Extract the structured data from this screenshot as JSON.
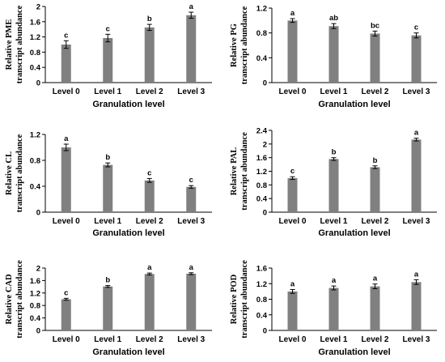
{
  "colors": {
    "bar": "#808080",
    "axis": "#000000",
    "text": "#000000"
  },
  "chart_data": [
    {
      "type": "bar",
      "categories": [
        "Level 0",
        "Level 1",
        "Level 2",
        "Level 3"
      ],
      "values": [
        1.0,
        1.17,
        1.45,
        1.77
      ],
      "errors": [
        0.1,
        0.1,
        0.08,
        0.08
      ],
      "significance": [
        "c",
        "c",
        "b",
        "a"
      ],
      "ylim": [
        0,
        2
      ],
      "yticks": [
        "0",
        "0.4",
        "0.8",
        "1.2",
        "1.6",
        "2"
      ],
      "ylabel": [
        "Relative PME",
        "transcript abundance"
      ],
      "xlabel": "Granulation level"
    },
    {
      "type": "bar",
      "categories": [
        "Level 0",
        "Level 1",
        "Level 2",
        "Level 3"
      ],
      "values": [
        1.0,
        0.91,
        0.79,
        0.76
      ],
      "errors": [
        0.03,
        0.04,
        0.04,
        0.04
      ],
      "significance": [
        "a",
        "ab",
        "bc",
        "c"
      ],
      "ylim": [
        0,
        1.2
      ],
      "yticks": [
        "0",
        "0.4",
        "0.8",
        "1.2"
      ],
      "ylabel": [
        "Relative PG",
        "transcript abundance"
      ],
      "xlabel": "Granulation level"
    },
    {
      "type": "bar",
      "categories": [
        "Level 0",
        "Level 1",
        "Level 2",
        "Level 3"
      ],
      "values": [
        1.0,
        0.73,
        0.49,
        0.39
      ],
      "errors": [
        0.05,
        0.03,
        0.03,
        0.02
      ],
      "significance": [
        "a",
        "b",
        "c",
        "c"
      ],
      "ylim": [
        0,
        1.2
      ],
      "yticks": [
        "0",
        "0.4",
        "0.8",
        "1.2"
      ],
      "ylabel": [
        "Relative CL",
        "transcript abundance"
      ],
      "xlabel": "Granulation level"
    },
    {
      "type": "bar",
      "categories": [
        "Level 0",
        "Level 1",
        "Level 2",
        "Level 3"
      ],
      "values": [
        1.0,
        1.56,
        1.32,
        2.13
      ],
      "errors": [
        0.04,
        0.04,
        0.04,
        0.04
      ],
      "significance": [
        "c",
        "b",
        "b",
        "a"
      ],
      "ylim": [
        0,
        2.4
      ],
      "yticks": [
        "0",
        "0.4",
        "0.8",
        "1.2",
        "1.6",
        "2",
        "2.4"
      ],
      "ylabel": [
        "Relative PAL",
        "transcript abundance"
      ],
      "xlabel": "Granulation level"
    },
    {
      "type": "bar",
      "categories": [
        "Level 0",
        "Level 1",
        "Level 2",
        "Level 3"
      ],
      "values": [
        1.0,
        1.41,
        1.81,
        1.82
      ],
      "errors": [
        0.03,
        0.03,
        0.03,
        0.03
      ],
      "significance": [
        "c",
        "b",
        "a",
        "a"
      ],
      "ylim": [
        0,
        2
      ],
      "yticks": [
        "0",
        "0.4",
        "0.8",
        "1.2",
        "1.6",
        "2"
      ],
      "ylabel": [
        "Relative CAD",
        "transcript abundance"
      ],
      "xlabel": "Granulation level"
    },
    {
      "type": "bar",
      "categories": [
        "Level 0",
        "Level 1",
        "Level 2",
        "Level 3"
      ],
      "values": [
        1.0,
        1.09,
        1.13,
        1.24
      ],
      "errors": [
        0.05,
        0.05,
        0.06,
        0.06
      ],
      "significance": [
        "a",
        "a",
        "a",
        "a"
      ],
      "ylim": [
        0,
        1.6
      ],
      "yticks": [
        "0",
        "0.4",
        "0.8",
        "1.2",
        "1.6"
      ],
      "ylabel": [
        "Relative POD",
        "transcript abundance"
      ],
      "xlabel": "Granulation level"
    }
  ]
}
